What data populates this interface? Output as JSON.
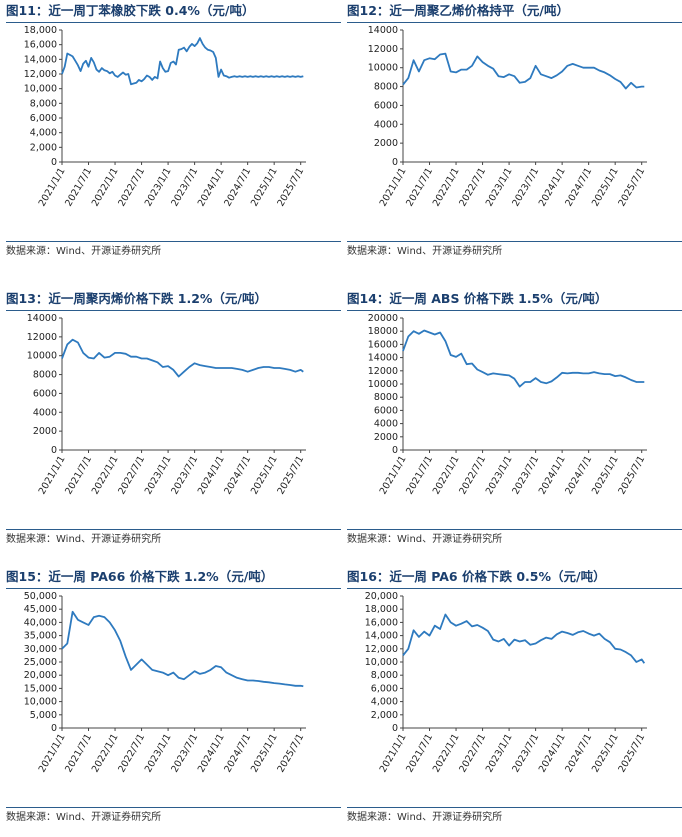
{
  "source_text": "数据来源：Wind、开源证券研究所",
  "line_color": "#2e7abf",
  "chart_data": [
    {
      "type": "line",
      "title": "图11：近一周丁苯橡胶下跌 0.4%（元/吨）",
      "ylim": [
        0,
        18000
      ],
      "yticks": [
        0,
        2000,
        4000,
        6000,
        8000,
        10000,
        12000,
        14000,
        16000,
        18000
      ],
      "yticklabels": [
        "0",
        "2,000",
        "4,000",
        "6,000",
        "8,000",
        "10,000",
        "12,000",
        "14,000",
        "16,000",
        "18,000"
      ],
      "xticklabels": [
        "2021/1/1",
        "2021/7/1",
        "2022/1/1",
        "2022/7/1",
        "2023/1/1",
        "2023/7/1",
        "2024/1/1",
        "2024/7/1",
        "2025/1/1",
        "2025/7/1"
      ],
      "x": [
        0,
        0.1,
        0.2,
        0.3,
        0.4,
        0.5,
        0.6,
        0.7,
        0.8,
        0.9,
        1.0,
        1.1,
        1.2,
        1.3,
        1.4,
        1.5,
        1.6,
        1.7,
        1.8,
        1.9,
        2.0,
        2.1,
        2.2,
        2.3,
        2.4,
        2.5,
        2.6,
        2.7,
        2.8,
        2.9,
        3.0,
        3.1,
        3.2,
        3.3,
        3.4,
        3.5,
        3.6,
        3.7,
        3.8,
        3.9,
        4.0,
        4.1,
        4.2,
        4.3,
        4.4,
        4.5,
        4.6,
        4.7,
        4.8,
        4.9,
        5.0,
        5.1,
        5.2,
        5.3,
        5.4,
        5.5,
        5.6,
        5.7,
        5.8,
        5.9,
        6.0,
        6.1,
        6.2,
        6.3,
        6.4,
        6.5,
        6.6,
        6.7,
        6.8,
        6.9,
        7.0,
        7.1,
        7.2,
        7.3,
        7.4,
        7.5,
        7.6,
        7.7,
        7.8,
        7.9,
        8.0,
        8.1,
        8.2,
        8.3,
        8.4,
        8.5,
        8.6,
        8.7,
        8.8,
        8.9,
        9.0,
        9.1
      ],
      "y": [
        12000,
        13000,
        14800,
        14600,
        14400,
        13800,
        13200,
        12400,
        13400,
        13800,
        13000,
        14200,
        13600,
        12600,
        12300,
        12800,
        12500,
        12400,
        12100,
        12300,
        11800,
        11600,
        11900,
        12200,
        11900,
        12000,
        10600,
        10700,
        10800,
        11200,
        11000,
        11300,
        11800,
        11600,
        11200,
        11600,
        11400,
        13700,
        12800,
        12300,
        12400,
        13500,
        13700,
        13300,
        15300,
        15400,
        15600,
        15100,
        15700,
        16100,
        15800,
        16200,
        16900,
        16100,
        15600,
        15300,
        15200,
        15000,
        14200,
        11600,
        12600,
        11800,
        11700,
        11500,
        11600,
        11700,
        11600,
        11700,
        11600,
        11700,
        11600,
        11700,
        11600,
        11700,
        11600,
        11700,
        11600,
        11700,
        11600,
        11700,
        11600,
        11700,
        11600,
        11700,
        11600,
        11700,
        11600,
        11700,
        11600,
        11700,
        11600,
        11700
      ]
    },
    {
      "type": "line",
      "title": "图12：近一周聚乙烯价格持平（元/吨）",
      "ylim": [
        0,
        14000
      ],
      "yticks": [
        0,
        2000,
        4000,
        6000,
        8000,
        10000,
        12000,
        14000
      ],
      "yticklabels": [
        "0",
        "2000",
        "4000",
        "6000",
        "8000",
        "10000",
        "12000",
        "14000"
      ],
      "xticklabels": [
        "2021/1/1",
        "2021/7/1",
        "2022/1/1",
        "2022/7/1",
        "2023/1/1",
        "2023/7/1",
        "2024/1/1",
        "2024/7/1",
        "2025/1/1",
        "2025/7/1"
      ],
      "x": [
        0,
        0.2,
        0.4,
        0.6,
        0.8,
        1.0,
        1.2,
        1.4,
        1.6,
        1.8,
        2.0,
        2.2,
        2.4,
        2.6,
        2.8,
        3.0,
        3.2,
        3.4,
        3.6,
        3.8,
        4.0,
        4.2,
        4.4,
        4.6,
        4.8,
        5.0,
        5.2,
        5.4,
        5.6,
        5.8,
        6.0,
        6.2,
        6.4,
        6.6,
        6.8,
        7.0,
        7.2,
        7.4,
        7.6,
        7.8,
        8.0,
        8.2,
        8.4,
        8.6,
        8.8,
        9.0,
        9.1
      ],
      "y": [
        8200,
        8900,
        10800,
        9600,
        10800,
        11000,
        10900,
        11400,
        11500,
        9600,
        9500,
        9800,
        9800,
        10200,
        11200,
        10600,
        10200,
        9900,
        9100,
        9000,
        9300,
        9100,
        8400,
        8500,
        8900,
        10200,
        9300,
        9100,
        8900,
        9200,
        9600,
        10200,
        10400,
        10200,
        10000,
        10000,
        10000,
        9700,
        9500,
        9200,
        8800,
        8500,
        7800,
        8400,
        7900,
        8000,
        8000
      ]
    },
    {
      "type": "line",
      "title": "图13：近一周聚丙烯价格下跌 1.2%（元/吨）",
      "ylim": [
        0,
        14000
      ],
      "yticks": [
        0,
        2000,
        4000,
        6000,
        8000,
        10000,
        12000,
        14000
      ],
      "yticklabels": [
        "0",
        "2000",
        "4000",
        "6000",
        "8000",
        "10000",
        "12000",
        "14000"
      ],
      "xticklabels": [
        "2021/1/1",
        "2021/7/1",
        "2022/1/1",
        "2022/7/1",
        "2023/1/1",
        "2023/7/1",
        "2024/1/1",
        "2024/7/1",
        "2025/1/1",
        "2025/7/1"
      ],
      "x": [
        0,
        0.2,
        0.4,
        0.6,
        0.8,
        1.0,
        1.2,
        1.4,
        1.6,
        1.8,
        2.0,
        2.2,
        2.4,
        2.6,
        2.8,
        3.0,
        3.2,
        3.4,
        3.6,
        3.8,
        4.0,
        4.2,
        4.4,
        4.6,
        4.8,
        5.0,
        5.2,
        5.4,
        5.6,
        5.8,
        6.0,
        6.2,
        6.4,
        6.6,
        6.8,
        7.0,
        7.2,
        7.4,
        7.6,
        7.8,
        8.0,
        8.2,
        8.4,
        8.6,
        8.8,
        9.0,
        9.1
      ],
      "y": [
        9700,
        11200,
        11700,
        11400,
        10300,
        9800,
        9700,
        10300,
        9800,
        9900,
        10300,
        10300,
        10200,
        9900,
        9900,
        9700,
        9700,
        9500,
        9300,
        8800,
        8900,
        8500,
        7800,
        8300,
        8800,
        9200,
        9000,
        8900,
        8800,
        8700,
        8700,
        8700,
        8700,
        8600,
        8500,
        8300,
        8500,
        8700,
        8800,
        8800,
        8700,
        8700,
        8600,
        8500,
        8300,
        8500,
        8300
      ]
    },
    {
      "type": "line",
      "title": "图14：近一周 ABS 价格下跌 1.5%（元/吨）",
      "ylim": [
        0,
        20000
      ],
      "yticks": [
        0,
        2000,
        4000,
        6000,
        8000,
        10000,
        12000,
        14000,
        16000,
        18000,
        20000
      ],
      "yticklabels": [
        "0",
        "2000",
        "4000",
        "6000",
        "8000",
        "10000",
        "12000",
        "14000",
        "16000",
        "18000",
        "20000"
      ],
      "xticklabels": [
        "2021/1/1",
        "2021/7/1",
        "2022/1/1",
        "2022/7/1",
        "2023/1/1",
        "2023/7/1",
        "2024/1/1",
        "2024/7/1",
        "2025/1/1",
        "2025/7/1"
      ],
      "x": [
        0,
        0.2,
        0.4,
        0.6,
        0.8,
        1.0,
        1.2,
        1.4,
        1.6,
        1.8,
        2.0,
        2.2,
        2.4,
        2.6,
        2.8,
        3.0,
        3.2,
        3.4,
        3.6,
        3.8,
        4.0,
        4.2,
        4.4,
        4.6,
        4.8,
        5.0,
        5.2,
        5.4,
        5.6,
        5.8,
        6.0,
        6.2,
        6.4,
        6.6,
        6.8,
        7.0,
        7.2,
        7.4,
        7.6,
        7.8,
        8.0,
        8.2,
        8.4,
        8.6,
        8.8,
        9.0,
        9.1
      ],
      "y": [
        15000,
        17200,
        18000,
        17600,
        18100,
        17800,
        17500,
        17800,
        16500,
        14400,
        14100,
        14600,
        13000,
        13100,
        12200,
        11800,
        11400,
        11600,
        11500,
        11400,
        11300,
        10800,
        9600,
        10300,
        10300,
        10900,
        10300,
        10100,
        10400,
        11000,
        11700,
        11600,
        11700,
        11700,
        11600,
        11600,
        11800,
        11600,
        11500,
        11500,
        11200,
        11300,
        11000,
        10600,
        10300,
        10300,
        10300
      ]
    },
    {
      "type": "line",
      "title": "图15：近一周 PA66 价格下跌 1.2%（元/吨）",
      "ylim": [
        0,
        50000
      ],
      "yticks": [
        0,
        5000,
        10000,
        15000,
        20000,
        25000,
        30000,
        35000,
        40000,
        45000,
        50000
      ],
      "yticklabels": [
        "0",
        "5,000",
        "10,000",
        "15,000",
        "20,000",
        "25,000",
        "30,000",
        "35,000",
        "40,000",
        "45,000",
        "50,000"
      ],
      "xticklabels": [
        "2021/1/1",
        "2021/7/1",
        "2022/1/1",
        "2022/7/1",
        "2023/1/1",
        "2023/7/1",
        "2024/1/1",
        "2024/7/1",
        "2025/1/1",
        "2025/7/1"
      ],
      "x": [
        0,
        0.2,
        0.4,
        0.6,
        0.8,
        1.0,
        1.2,
        1.4,
        1.6,
        1.8,
        2.0,
        2.2,
        2.4,
        2.6,
        2.8,
        3.0,
        3.2,
        3.4,
        3.6,
        3.8,
        4.0,
        4.2,
        4.4,
        4.6,
        4.8,
        5.0,
        5.2,
        5.4,
        5.6,
        5.8,
        6.0,
        6.2,
        6.4,
        6.6,
        6.8,
        7.0,
        7.2,
        7.4,
        7.6,
        7.8,
        8.0,
        8.2,
        8.4,
        8.6,
        8.8,
        9.0,
        9.1
      ],
      "y": [
        30000,
        32000,
        44000,
        41000,
        40000,
        39000,
        42000,
        42500,
        42000,
        40000,
        37000,
        33000,
        27000,
        22000,
        24000,
        26000,
        24000,
        22000,
        21500,
        21000,
        20000,
        21000,
        19000,
        18500,
        20000,
        21500,
        20500,
        21000,
        22000,
        23500,
        23000,
        21000,
        20000,
        19000,
        18500,
        18000,
        18000,
        17800,
        17500,
        17300,
        17000,
        16800,
        16500,
        16300,
        16000,
        16000,
        15800
      ]
    },
    {
      "type": "line",
      "title": "图16：近一周 PA6 价格下跌 0.5%（元/吨）",
      "ylim": [
        0,
        20000
      ],
      "yticks": [
        0,
        2000,
        4000,
        6000,
        8000,
        10000,
        12000,
        14000,
        16000,
        18000,
        20000
      ],
      "yticklabels": [
        "0",
        "2,000",
        "4,000",
        "6,000",
        "8,000",
        "10,000",
        "12,000",
        "14,000",
        "16,000",
        "18,000",
        "20,000"
      ],
      "xticklabels": [
        "2021/1/1",
        "2021/7/1",
        "2022/1/1",
        "2022/7/1",
        "2023/1/1",
        "2023/7/1",
        "2024/1/1",
        "2024/7/1",
        "2025/1/1",
        "2025/7/1"
      ],
      "x": [
        0,
        0.2,
        0.4,
        0.6,
        0.8,
        1.0,
        1.2,
        1.4,
        1.6,
        1.8,
        2.0,
        2.2,
        2.4,
        2.6,
        2.8,
        3.0,
        3.2,
        3.4,
        3.6,
        3.8,
        4.0,
        4.2,
        4.4,
        4.6,
        4.8,
        5.0,
        5.2,
        5.4,
        5.6,
        5.8,
        6.0,
        6.2,
        6.4,
        6.6,
        6.8,
        7.0,
        7.2,
        7.4,
        7.6,
        7.8,
        8.0,
        8.2,
        8.4,
        8.6,
        8.8,
        9.0,
        9.1
      ],
      "y": [
        11000,
        12000,
        14800,
        13800,
        14600,
        14000,
        15500,
        15000,
        17200,
        16000,
        15500,
        15800,
        16200,
        15400,
        15600,
        15200,
        14700,
        13400,
        13100,
        13500,
        12500,
        13400,
        13100,
        13300,
        12600,
        12800,
        13300,
        13700,
        13500,
        14200,
        14600,
        14400,
        14100,
        14500,
        14700,
        14300,
        14000,
        14300,
        13500,
        13000,
        12000,
        11900,
        11500,
        11000,
        10000,
        10400,
        9800
      ]
    }
  ]
}
